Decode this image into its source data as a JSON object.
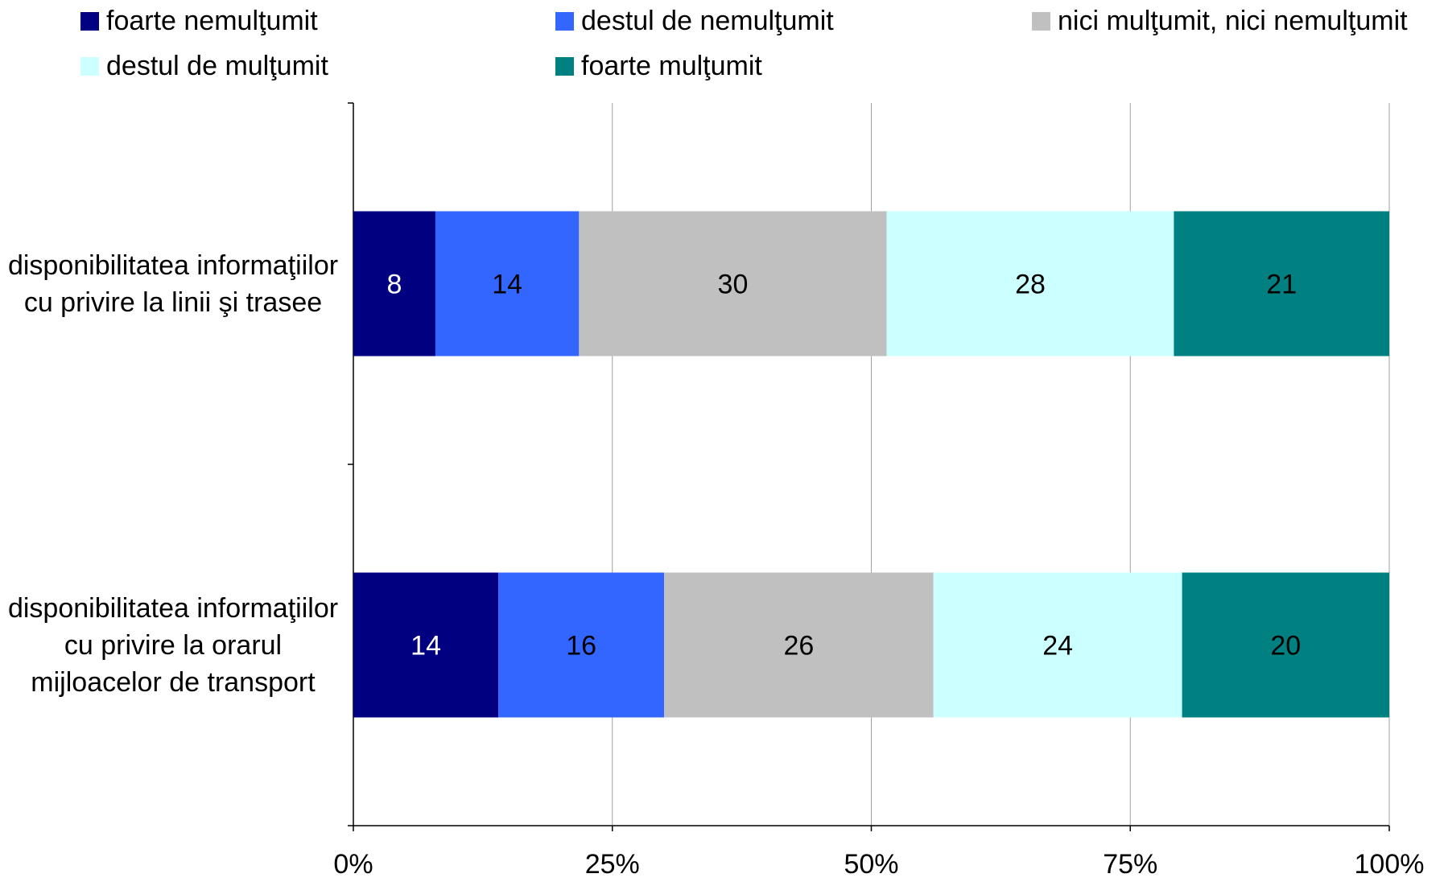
{
  "chart_data": {
    "type": "bar",
    "orientation": "horizontal",
    "stacked": "percent",
    "categories": [
      "disponibilitatea informaţiilor cu privire la linii şi trasee",
      "disponibilitatea informaţiilor cu privire la orarul mijloacelor de transport"
    ],
    "series": [
      {
        "name": "foarte nemulţumit",
        "values": [
          8,
          14
        ],
        "color": "#000080"
      },
      {
        "name": "destul de nemulţumit",
        "values": [
          14,
          16
        ],
        "color": "#3366FF"
      },
      {
        "name": "nici mulţumit, nici nemulţumit",
        "values": [
          30,
          26
        ],
        "color": "#C0C0C0"
      },
      {
        "name": "destul de mulţumit",
        "values": [
          28,
          24
        ],
        "color": "#CCFFFF"
      },
      {
        "name": "foarte mulţumit",
        "values": [
          21,
          20
        ],
        "color": "#008080"
      }
    ],
    "label_colors": [
      "#FFFFFF",
      "#000000",
      "#000000",
      "#000000",
      "#000000"
    ],
    "xlim": [
      0,
      100
    ],
    "xticks": [
      "0%",
      "25%",
      "50%",
      "75%",
      "100%"
    ],
    "grid": "vertical",
    "legend_position": "top"
  }
}
